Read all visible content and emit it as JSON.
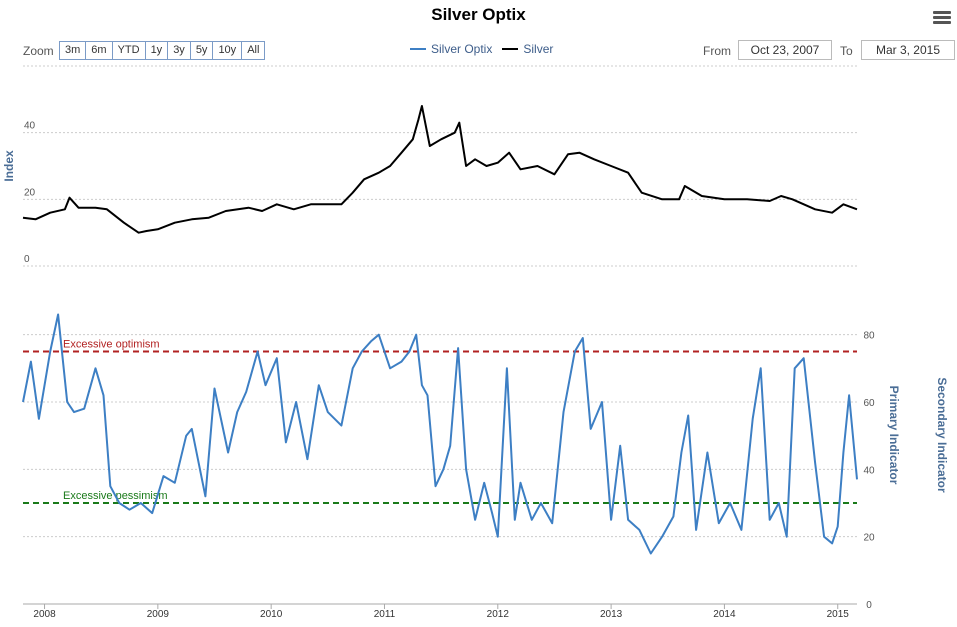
{
  "title": "Silver Optix",
  "toolbar": {
    "zoom_label": "Zoom",
    "zoom_buttons": [
      "3m",
      "6m",
      "YTD",
      "1y",
      "3y",
      "5y",
      "10y",
      "All"
    ],
    "from_label": "From",
    "from_value": "Oct 23, 2007",
    "to_label": "To",
    "to_value": "Mar 3, 2015"
  },
  "legend": [
    {
      "name": "Silver Optix",
      "color": "#3d7fc4"
    },
    {
      "name": "Silver",
      "color": "#000000"
    }
  ],
  "chart_data": {
    "type": "line",
    "x_range": [
      2007.81,
      2015.17
    ],
    "x_ticks": [
      "2008",
      "2009",
      "2010",
      "2011",
      "2012",
      "2013",
      "2014",
      "2015"
    ],
    "top_panel": {
      "ylabel": "Index",
      "ylim": [
        0,
        60
      ],
      "yticks": [
        0,
        20,
        40
      ],
      "series": {
        "name": "Silver",
        "color": "#000000",
        "x": [
          2007.81,
          2007.92,
          2008.05,
          2008.18,
          2008.22,
          2008.3,
          2008.45,
          2008.55,
          2008.7,
          2008.83,
          2008.9,
          2009.0,
          2009.15,
          2009.3,
          2009.45,
          2009.6,
          2009.8,
          2009.92,
          2010.05,
          2010.2,
          2010.35,
          2010.5,
          2010.62,
          2010.72,
          2010.82,
          2010.95,
          2011.05,
          2011.15,
          2011.25,
          2011.3,
          2011.33,
          2011.4,
          2011.5,
          2011.62,
          2011.66,
          2011.72,
          2011.8,
          2011.9,
          2012.0,
          2012.1,
          2012.2,
          2012.35,
          2012.5,
          2012.62,
          2012.72,
          2012.85,
          2013.0,
          2013.15,
          2013.27,
          2013.45,
          2013.6,
          2013.65,
          2013.8,
          2014.0,
          2014.2,
          2014.4,
          2014.5,
          2014.6,
          2014.8,
          2014.95,
          2015.05,
          2015.17
        ],
        "y": [
          14.5,
          14,
          16,
          17,
          20.5,
          17.5,
          17.5,
          17,
          13,
          10,
          10.5,
          11,
          13,
          14,
          14.5,
          16.5,
          17.5,
          16.5,
          18.5,
          17,
          18.5,
          18.5,
          18.5,
          22,
          26,
          28,
          30,
          34,
          38,
          44,
          48,
          36,
          38,
          40,
          43,
          30,
          32,
          30,
          31,
          34,
          29,
          30,
          27.5,
          33.5,
          34,
          32,
          30,
          28,
          22,
          20,
          20,
          24,
          21,
          20,
          20,
          19.5,
          21,
          20,
          17,
          16,
          18.5,
          17
        ]
      }
    },
    "bottom_panel": {
      "ylabel": "Primary Indicator",
      "ylabel_secondary": "Secondary Indicator",
      "ylim": [
        0,
        90
      ],
      "yticks": [
        0,
        20,
        40,
        60,
        80
      ],
      "series": {
        "name": "Silver Optix",
        "color": "#3d7fc4",
        "x": [
          2007.81,
          2007.88,
          2007.95,
          2008.05,
          2008.12,
          2008.2,
          2008.26,
          2008.35,
          2008.45,
          2008.52,
          2008.58,
          2008.66,
          2008.75,
          2008.85,
          2008.95,
          2009.05,
          2009.15,
          2009.25,
          2009.3,
          2009.42,
          2009.5,
          2009.62,
          2009.7,
          2009.78,
          2009.88,
          2009.95,
          2010.05,
          2010.13,
          2010.22,
          2010.32,
          2010.42,
          2010.5,
          2010.62,
          2010.72,
          2010.8,
          2010.88,
          2010.95,
          2011.05,
          2011.15,
          2011.22,
          2011.28,
          2011.33,
          2011.38,
          2011.45,
          2011.52,
          2011.58,
          2011.65,
          2011.72,
          2011.8,
          2011.88,
          2011.95,
          2012.0,
          2012.08,
          2012.15,
          2012.2,
          2012.3,
          2012.38,
          2012.48,
          2012.58,
          2012.68,
          2012.75,
          2012.82,
          2012.92,
          2013.0,
          2013.08,
          2013.15,
          2013.25,
          2013.35,
          2013.45,
          2013.55,
          2013.62,
          2013.68,
          2013.75,
          2013.85,
          2013.95,
          2014.05,
          2014.15,
          2014.25,
          2014.32,
          2014.4,
          2014.48,
          2014.55,
          2014.62,
          2014.7,
          2014.8,
          2014.88,
          2014.95,
          2015.0,
          2015.05,
          2015.1,
          2015.17
        ],
        "y": [
          60,
          72,
          55,
          75,
          86,
          60,
          57,
          58,
          70,
          62,
          35,
          30,
          28,
          30,
          27,
          38,
          36,
          50,
          52,
          32,
          64,
          45,
          57,
          63,
          75,
          65,
          73,
          48,
          60,
          43,
          65,
          57,
          53,
          70,
          75,
          78,
          80,
          70,
          72,
          75,
          80,
          65,
          62,
          35,
          40,
          47,
          76,
          40,
          25,
          36,
          27,
          20,
          70,
          25,
          36,
          25,
          30,
          24,
          57,
          75,
          79,
          52,
          60,
          25,
          47,
          25,
          22,
          15,
          20,
          26,
          45,
          56,
          22,
          45,
          24,
          30,
          22,
          55,
          70,
          25,
          30,
          20,
          70,
          73,
          42,
          20,
          18,
          23,
          45,
          62,
          37
        ]
      },
      "annotations": [
        {
          "label": "Excessive optimism",
          "value": 75,
          "color": "#b22222"
        },
        {
          "label": "Excessive pessimism",
          "value": 30,
          "color": "#1a7a1a"
        }
      ]
    }
  }
}
